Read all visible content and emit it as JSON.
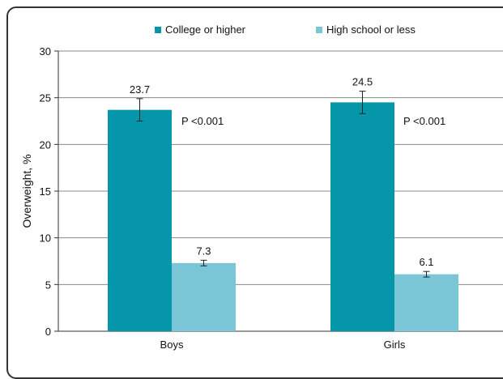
{
  "chart_data": {
    "type": "bar",
    "title": "",
    "xlabel": "",
    "ylabel": "Overweight, %",
    "ylim": [
      0,
      30
    ],
    "yticks": [
      0,
      5,
      10,
      15,
      20,
      25,
      30
    ],
    "categories": [
      "Boys",
      "Girls"
    ],
    "grid": true,
    "legend_position": "top",
    "series": [
      {
        "name": "College or higher",
        "color": "#0596aa",
        "values": [
          23.7,
          24.5
        ],
        "labels": [
          "23.7",
          "24.5"
        ],
        "error_low": [
          22.5,
          23.3
        ],
        "error_high": [
          24.9,
          25.7
        ]
      },
      {
        "name": "High school or less",
        "color": "#7bc6d6",
        "values": [
          7.3,
          6.1
        ],
        "labels": [
          "7.3",
          "6.1"
        ],
        "error_low": [
          7.0,
          5.8
        ],
        "error_high": [
          7.6,
          6.4
        ]
      }
    ],
    "annotations": [
      "P <0.001",
      "P <0.001"
    ]
  }
}
